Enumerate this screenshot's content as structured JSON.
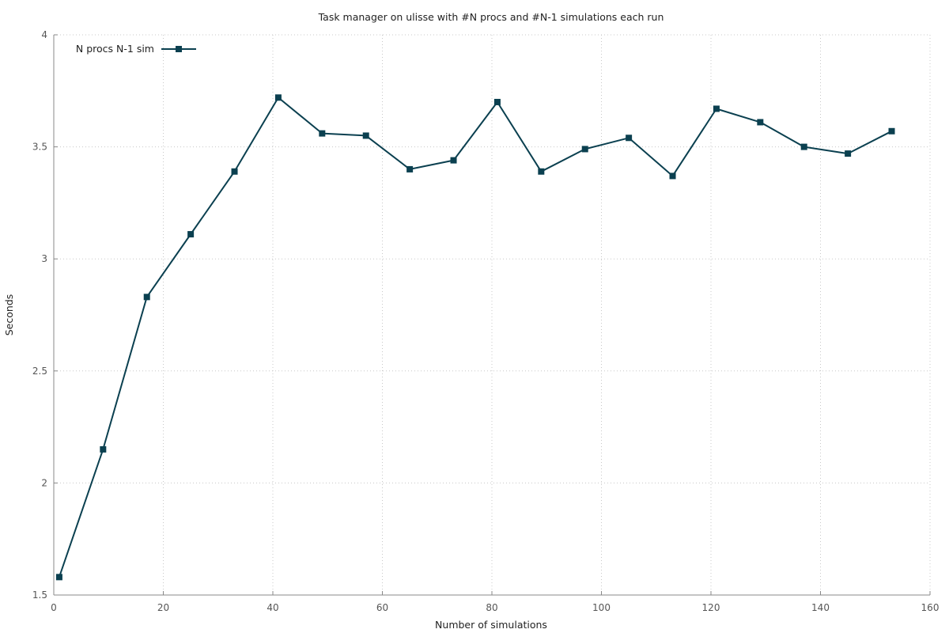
{
  "chart_data": {
    "type": "line",
    "title": "Task manager on ulisse with #N procs and #N-1 simulations each run",
    "xlabel": "Number of simulations",
    "ylabel": "Seconds",
    "xlim": [
      0,
      160
    ],
    "ylim": [
      1.5,
      4
    ],
    "x_ticks": [
      0,
      20,
      40,
      60,
      80,
      100,
      120,
      140,
      160
    ],
    "y_ticks": [
      1.5,
      2,
      2.5,
      3,
      3.5,
      4
    ],
    "x_tick_labels": [
      "0",
      "20",
      "40",
      "60",
      "80",
      "100",
      "120",
      "140",
      "160"
    ],
    "y_tick_labels": [
      "1.5",
      "2",
      "2.5",
      "3",
      "3.5",
      "4"
    ],
    "grid": true,
    "legend_position": "top-left",
    "series": [
      {
        "name": "N procs N-1 sim",
        "color": "#0b4050",
        "marker": "square",
        "x": [
          1,
          9,
          17,
          25,
          33,
          41,
          49,
          57,
          65,
          73,
          81,
          89,
          97,
          105,
          113,
          121,
          129,
          137,
          145,
          153
        ],
        "y": [
          1.58,
          2.15,
          2.83,
          3.11,
          3.39,
          3.72,
          3.56,
          3.55,
          3.4,
          3.44,
          3.7,
          3.39,
          3.49,
          3.54,
          3.37,
          3.67,
          3.61,
          3.5,
          3.47,
          3.57
        ]
      }
    ]
  }
}
